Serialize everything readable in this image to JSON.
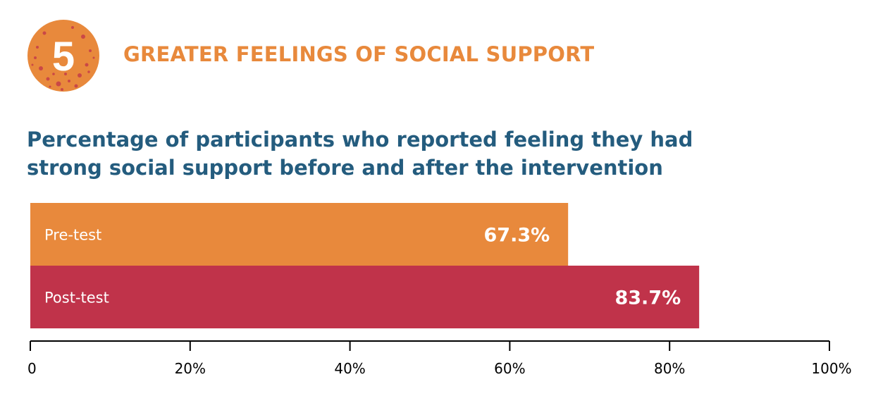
{
  "section": {
    "number": "5",
    "title": "GREATER FEELINGS OF SOCIAL SUPPORT"
  },
  "chart_data": {
    "type": "bar",
    "orientation": "horizontal",
    "title": "Percentage of participants who reported feeling they had strong social support before and after the intervention",
    "categories": [
      "Pre-test",
      "Post-test"
    ],
    "values": [
      67.3,
      83.7
    ],
    "value_labels": [
      "67.3%",
      "83.7%"
    ],
    "bar_colors": [
      "#e8893c",
      "#c0334a"
    ],
    "xlim": [
      0,
      100
    ],
    "x_ticks": [
      0,
      20,
      40,
      60,
      80,
      100
    ],
    "x_tick_labels": [
      "0",
      "20%",
      "40%",
      "60%",
      "80%",
      "100%"
    ],
    "xlabel": "",
    "ylabel": "",
    "grid": false,
    "legend": "none"
  },
  "colors": {
    "accent_orange": "#e8893c",
    "accent_red": "#c0334a",
    "title_blue": "#245c7e"
  }
}
